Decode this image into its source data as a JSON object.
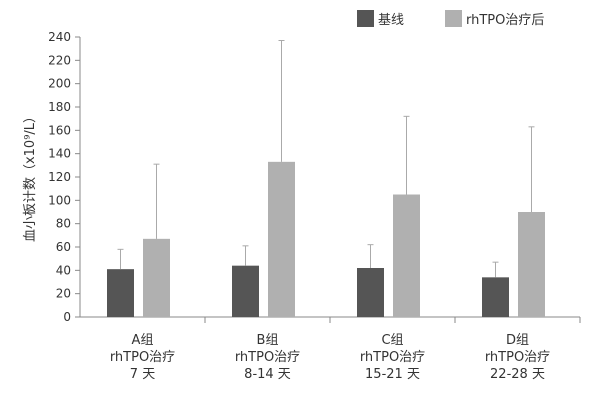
{
  "chart_data": {
    "type": "bar",
    "title": "",
    "xlabel": "",
    "ylabel": "血小板计数（x10⁹/L）",
    "ylim": [
      0,
      240
    ],
    "yticks": [
      0,
      20,
      40,
      60,
      80,
      100,
      120,
      140,
      160,
      180,
      200,
      220,
      240
    ],
    "grid": false,
    "legend_position": "top-right",
    "categories": [
      [
        "A组",
        "rhTPO治疗",
        "7 天"
      ],
      [
        "B组",
        "rhTPO治疗",
        "8-14 天"
      ],
      [
        "C组",
        "rhTPO治疗",
        "15-21 天"
      ],
      [
        "D组",
        "rhTPO治疗",
        "22-28 天"
      ]
    ],
    "series": [
      {
        "name": "基线",
        "color": "#555555",
        "values": [
          41,
          44,
          42,
          34
        ],
        "error_upper": [
          58,
          61,
          62,
          47
        ]
      },
      {
        "name": "rhTPO治疗后",
        "color": "#b0b0b0",
        "values": [
          67,
          133,
          105,
          90
        ],
        "error_upper": [
          131,
          237,
          172,
          163
        ]
      }
    ]
  }
}
